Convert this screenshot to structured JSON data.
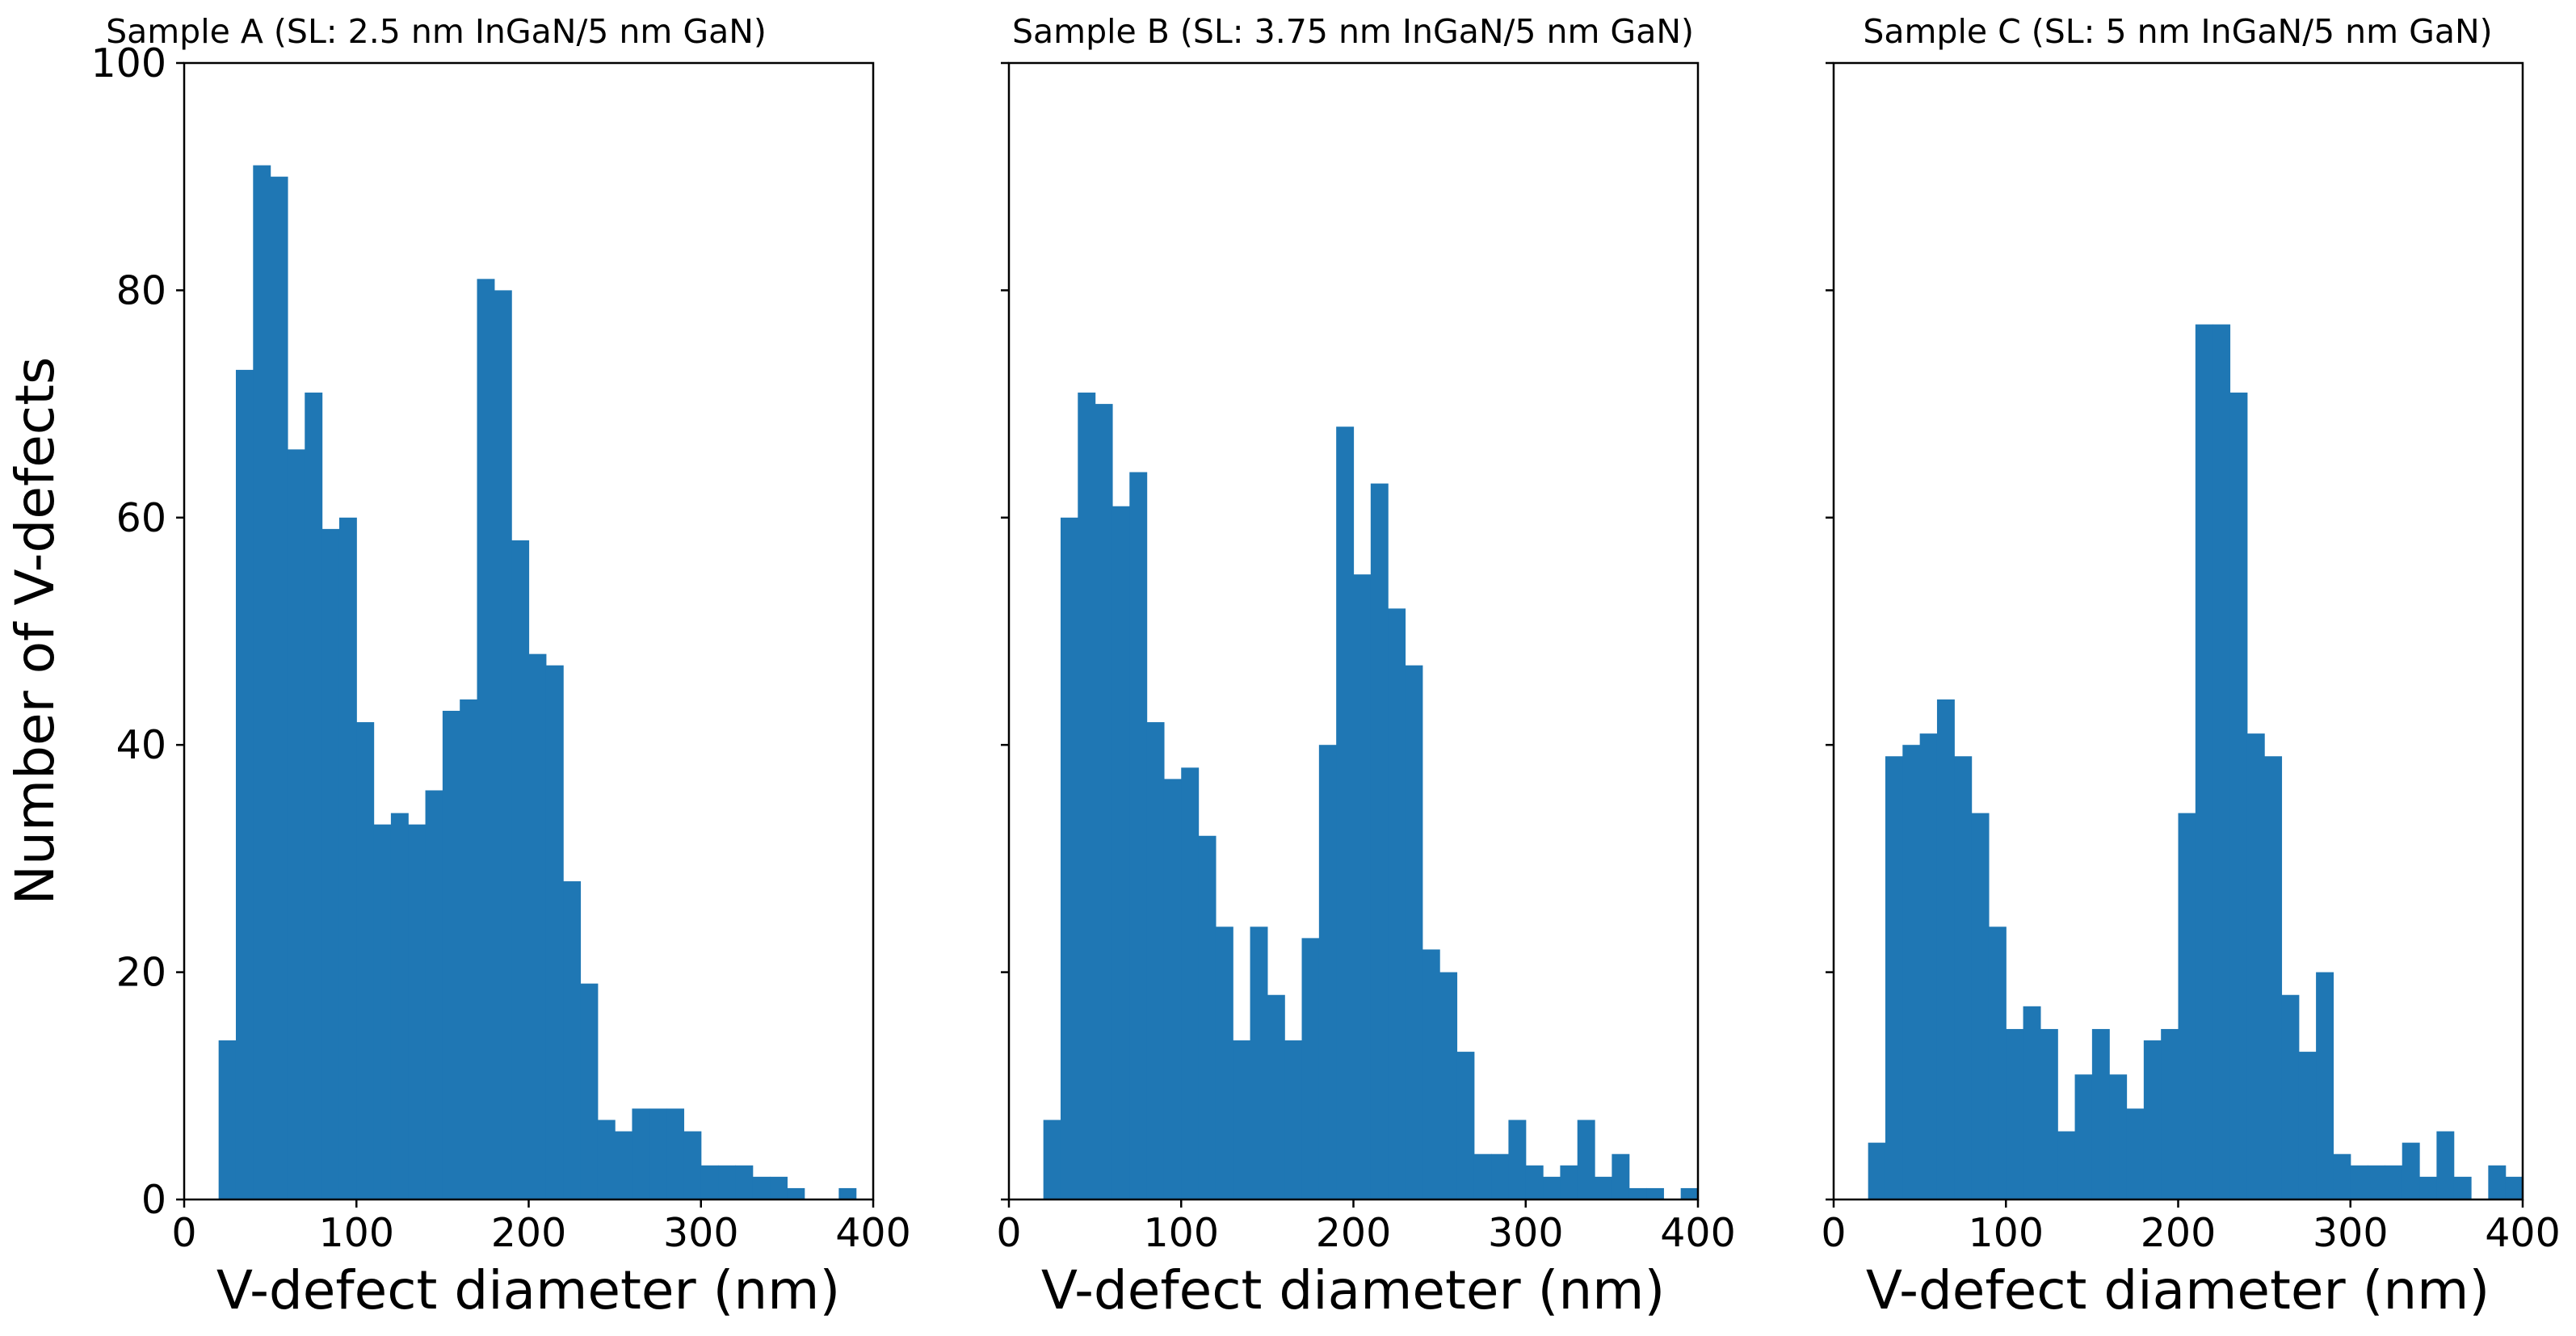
{
  "chart_data": [
    {
      "type": "bar",
      "title": "Sample A (SL: 2.5 nm InGaN/5 nm GaN)",
      "xlabel": "V-defect diameter (nm)",
      "ylabel": "Number of V-defects",
      "xlim": [
        0,
        400
      ],
      "ylim": [
        0,
        100
      ],
      "xticks": [
        "0",
        "100",
        "200",
        "300",
        "400"
      ],
      "yticks": [
        "0",
        "20",
        "40",
        "60",
        "80",
        "100"
      ],
      "bin_width": 10,
      "bin_starts": [
        20,
        30,
        40,
        50,
        60,
        70,
        80,
        90,
        100,
        110,
        120,
        130,
        140,
        150,
        160,
        170,
        180,
        190,
        200,
        210,
        220,
        230,
        240,
        250,
        260,
        270,
        280,
        290,
        300,
        310,
        320,
        330,
        340,
        350,
        360,
        370,
        380
      ],
      "values": [
        14,
        73,
        91,
        90,
        66,
        71,
        59,
        60,
        42,
        33,
        34,
        33,
        36,
        43,
        44,
        81,
        80,
        58,
        48,
        47,
        28,
        19,
        7,
        6,
        8,
        8,
        8,
        6,
        3,
        3,
        3,
        2,
        2,
        1,
        0,
        0,
        1
      ]
    },
    {
      "type": "bar",
      "title": "Sample B (SL: 3.75 nm InGaN/5 nm GaN)",
      "xlabel": "V-defect diameter (nm)",
      "ylabel": "",
      "xlim": [
        0,
        400
      ],
      "ylim": [
        0,
        100
      ],
      "xticks": [
        "0",
        "100",
        "200",
        "300",
        "400"
      ],
      "yticks": [],
      "bin_width": 10,
      "bin_starts": [
        20,
        30,
        40,
        50,
        60,
        70,
        80,
        90,
        100,
        110,
        120,
        130,
        140,
        150,
        160,
        170,
        180,
        190,
        200,
        210,
        220,
        230,
        240,
        250,
        260,
        270,
        280,
        290,
        300,
        310,
        320,
        330,
        340,
        350,
        360,
        370,
        380,
        390
      ],
      "values": [
        7,
        60,
        71,
        70,
        61,
        64,
        42,
        37,
        38,
        32,
        24,
        14,
        24,
        18,
        14,
        23,
        40,
        68,
        55,
        63,
        52,
        47,
        22,
        20,
        13,
        4,
        4,
        7,
        3,
        2,
        3,
        7,
        2,
        4,
        1,
        1,
        0,
        1
      ]
    },
    {
      "type": "bar",
      "title": "Sample C (SL: 5 nm InGaN/5 nm GaN)",
      "xlabel": "V-defect diameter (nm)",
      "ylabel": "",
      "xlim": [
        0,
        400
      ],
      "ylim": [
        0,
        100
      ],
      "xticks": [
        "0",
        "100",
        "200",
        "300",
        "400"
      ],
      "yticks": [],
      "bin_width": 10,
      "bin_starts": [
        20,
        30,
        40,
        50,
        60,
        70,
        80,
        90,
        100,
        110,
        120,
        130,
        140,
        150,
        160,
        170,
        180,
        190,
        200,
        210,
        220,
        230,
        240,
        250,
        260,
        270,
        280,
        290,
        300,
        310,
        320,
        330,
        340,
        350,
        360,
        370,
        380,
        390
      ],
      "values": [
        5,
        39,
        40,
        41,
        44,
        39,
        34,
        24,
        15,
        17,
        15,
        6,
        11,
        15,
        11,
        8,
        14,
        15,
        34,
        77,
        77,
        71,
        41,
        39,
        18,
        13,
        20,
        4,
        3,
        3,
        3,
        5,
        2,
        6,
        2,
        0,
        3,
        2
      ]
    }
  ]
}
